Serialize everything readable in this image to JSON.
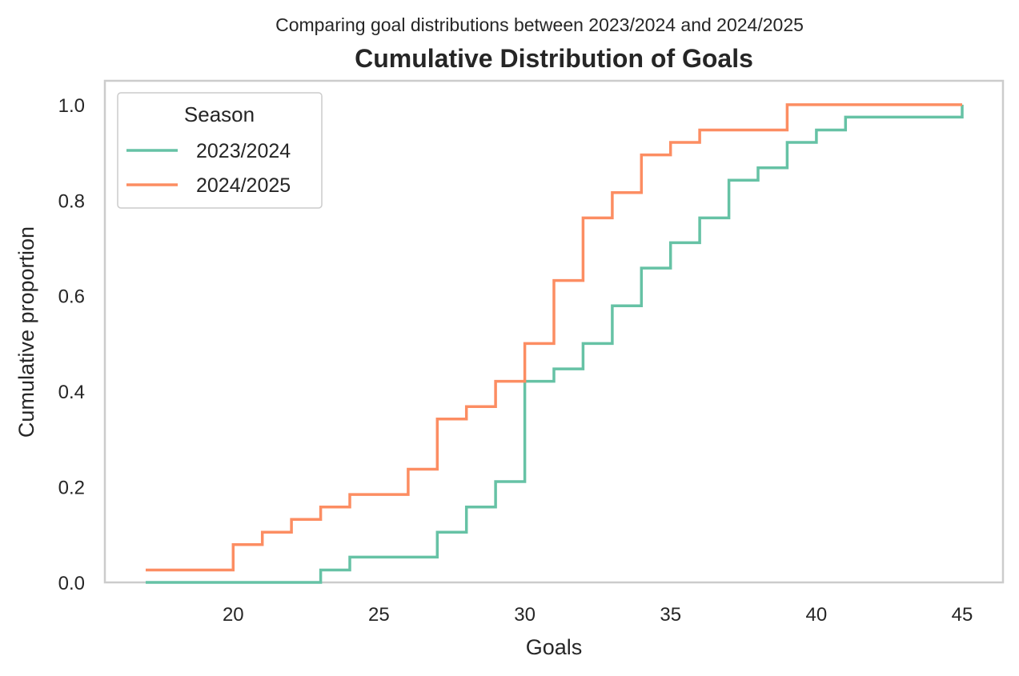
{
  "chart_data": {
    "type": "line",
    "step": "post",
    "suptitle": "Comparing goal distributions between 2023/2024 and 2024/2025",
    "title": "Cumulative Distribution of Goals",
    "xlabel": "Goals",
    "ylabel": "Cumulative proportion",
    "xlim": [
      15.6,
      46.4
    ],
    "ylim": [
      0,
      1.05
    ],
    "xticks": [
      20,
      25,
      30,
      35,
      40,
      45
    ],
    "xtick_labels": [
      "20",
      "25",
      "30",
      "35",
      "40",
      "45"
    ],
    "yticks": [
      0,
      0.2,
      0.4,
      0.6,
      0.8,
      1.0
    ],
    "ytick_labels": [
      "0.0",
      "0.2",
      "0.4",
      "0.6",
      "0.8",
      "1.0"
    ],
    "grid": false,
    "legend": {
      "title": "Season",
      "placement": "upper left"
    },
    "series": [
      {
        "name": "2023/2024",
        "color": "#66c2a5",
        "x": [
          17,
          23,
          24,
          27,
          28,
          29,
          30,
          31,
          32,
          33,
          34,
          35,
          36,
          37,
          38,
          39,
          40,
          41,
          45
        ],
        "y": [
          0.0,
          0.026,
          0.053,
          0.105,
          0.158,
          0.211,
          0.421,
          0.447,
          0.5,
          0.579,
          0.658,
          0.711,
          0.763,
          0.842,
          0.868,
          0.921,
          0.947,
          0.974,
          1.0
        ]
      },
      {
        "name": "2024/2025",
        "color": "#fc8d62",
        "x": [
          17,
          20,
          21,
          22,
          23,
          24,
          26,
          27,
          28,
          29,
          30,
          31,
          32,
          33,
          34,
          35,
          36,
          39,
          45
        ],
        "y": [
          0.026,
          0.079,
          0.105,
          0.132,
          0.158,
          0.184,
          0.237,
          0.342,
          0.368,
          0.421,
          0.5,
          0.632,
          0.763,
          0.816,
          0.895,
          0.921,
          0.947,
          1.0,
          1.0
        ]
      }
    ]
  }
}
